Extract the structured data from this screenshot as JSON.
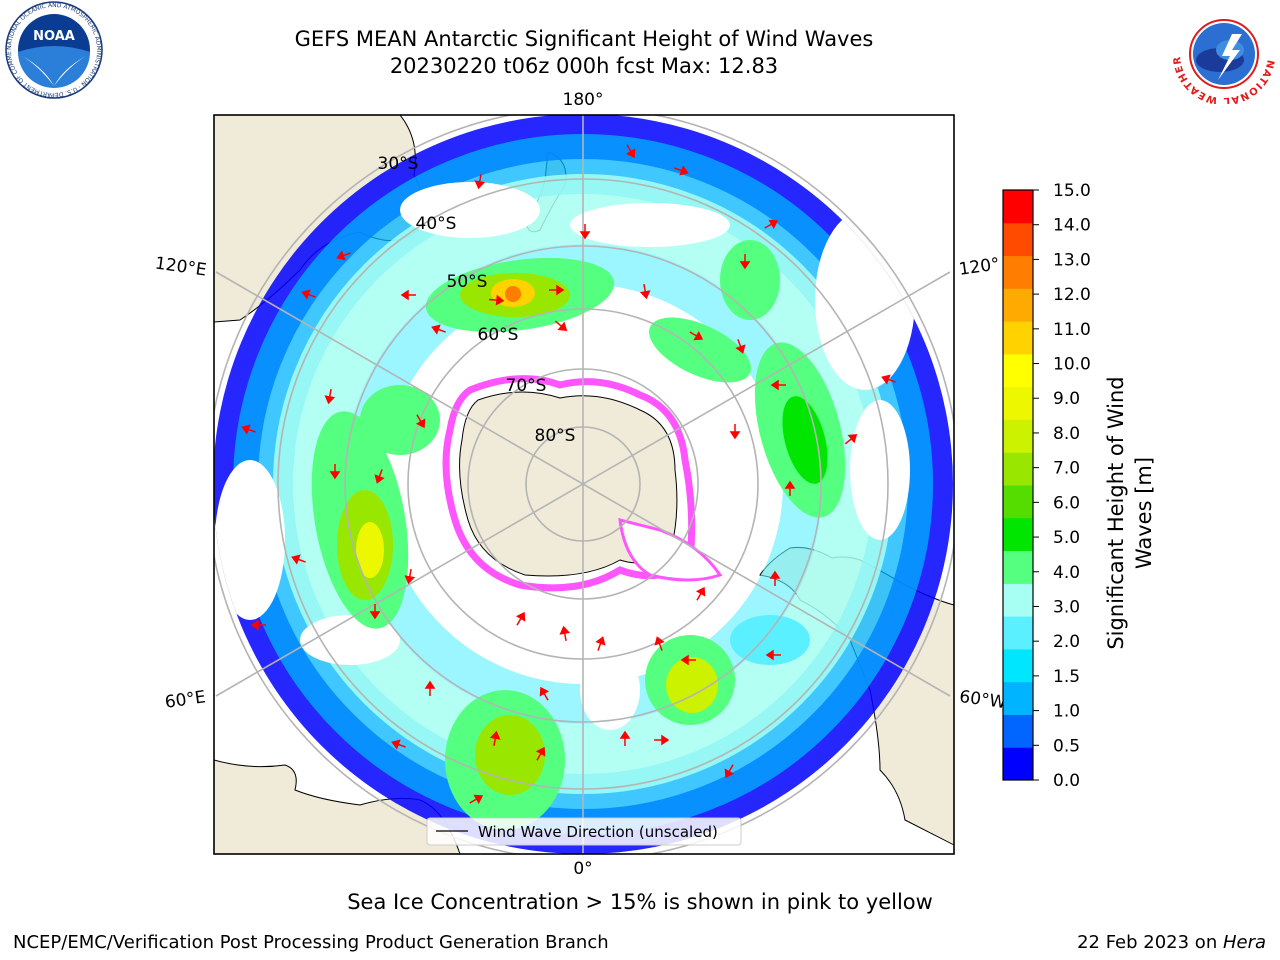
{
  "title": {
    "line1": "GEFS MEAN Antarctic Significant Height of Wind Waves",
    "line2": "20230220 t06z 000h fcst   Max: 12.83"
  },
  "logos": {
    "left": "noaa-logo",
    "right": "national-weather-service-logo",
    "left_text": "NATIONAL OCEANIC AND ATMOSPHERIC ADMINISTRATION · U.S. DEPARTMENT OF COMMERCE",
    "right_text": "NATIONAL WEATHER SERVICE"
  },
  "map": {
    "projection": "south polar stereographic",
    "longitude_labels": [
      "180°",
      "120°E",
      "120°",
      "60°E",
      "60°W",
      "0°"
    ],
    "latitude_labels": [
      "30°S",
      "40°S",
      "50°S",
      "60°S",
      "70°S",
      "80°S"
    ],
    "legend": "Wind Wave Direction (unscaled)"
  },
  "colorbar": {
    "label_line1": "Significant Height of Wind",
    "label_line2": "Waves [m]",
    "ticks": [
      "0.0",
      "0.5",
      "1.0",
      "1.5",
      "2.0",
      "3.0",
      "4.0",
      "5.0",
      "6.0",
      "7.0",
      "8.0",
      "9.0",
      "10.0",
      "11.0",
      "12.0",
      "13.0",
      "14.0",
      "15.0"
    ],
    "colors": [
      "#0000ff",
      "#0066ff",
      "#00b4ff",
      "#00e6ff",
      "#5af0ff",
      "#a6fff2",
      "#55ff7f",
      "#00e600",
      "#55dd00",
      "#99e600",
      "#ccf200",
      "#ecf700",
      "#ffff00",
      "#ffd200",
      "#ffaa00",
      "#ff7d00",
      "#ff4b00",
      "#ff0000"
    ]
  },
  "colors": {
    "land": "#efebd8",
    "ice": "#ff55ff",
    "arrow": "#ff0000",
    "grid": "#b4b4b4"
  },
  "note": "Sea Ice Concentration > 15% is shown in pink to yellow",
  "footer": {
    "left": "NCEP/EMC/Verification Post Processing Product Generation Branch",
    "right_date": "22 Feb 2023 on ",
    "right_host": "Hera"
  }
}
